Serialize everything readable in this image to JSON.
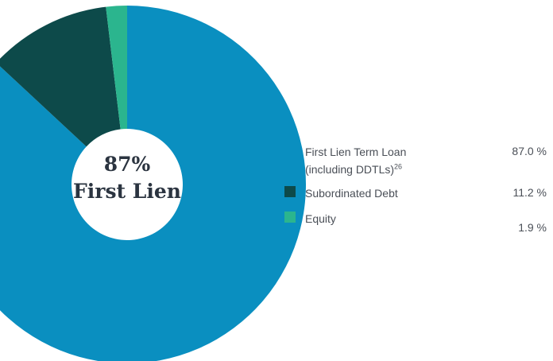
{
  "chart_data": {
    "type": "pie",
    "center_label": {
      "line1": "87%",
      "line2": "First Lien"
    },
    "slices": [
      {
        "label_line1": "First Lien Term Loan",
        "label_line2": "(including DDTLs)",
        "footnote": "26",
        "value": 87.0,
        "value_text": "87.0 %",
        "color": "#0a8fc0"
      },
      {
        "label_line1": "Subordinated Debt",
        "value": 11.2,
        "value_text": "11.2 %",
        "color": "#0d4a4a"
      },
      {
        "label_line1": "Equity",
        "value": 1.9,
        "value_text": "1.9 %",
        "color": "#2bb58e"
      }
    ]
  }
}
